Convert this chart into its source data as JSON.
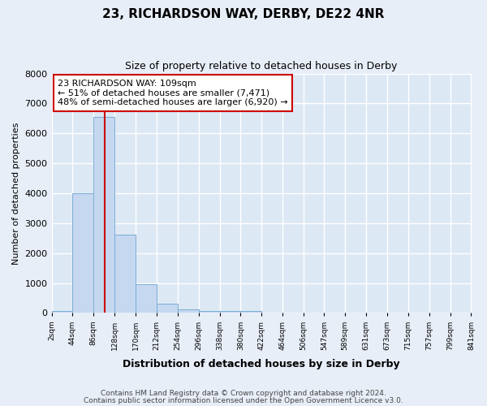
{
  "title": "23, RICHARDSON WAY, DERBY, DE22 4NR",
  "subtitle": "Size of property relative to detached houses in Derby",
  "xlabel": "Distribution of detached houses by size in Derby",
  "ylabel": "Number of detached properties",
  "bar_color": "#c5d8f0",
  "bar_edge_color": "#7aadd4",
  "bar_heights": [
    80,
    4000,
    6550,
    2620,
    960,
    310,
    120,
    80,
    60,
    55,
    0,
    0,
    0,
    0,
    0,
    0,
    0,
    0,
    0,
    0
  ],
  "bin_edges": [
    2,
    44,
    86,
    128,
    170,
    212,
    254,
    296,
    338,
    380,
    422,
    464,
    506,
    547,
    589,
    631,
    673,
    715,
    757,
    799,
    841
  ],
  "x_labels": [
    "2sqm",
    "44sqm",
    "86sqm",
    "128sqm",
    "170sqm",
    "212sqm",
    "254sqm",
    "296sqm",
    "338sqm",
    "380sqm",
    "422sqm",
    "464sqm",
    "506sqm",
    "547sqm",
    "589sqm",
    "631sqm",
    "673sqm",
    "715sqm",
    "757sqm",
    "799sqm",
    "841sqm"
  ],
  "ylim": [
    0,
    8000
  ],
  "yticks": [
    0,
    1000,
    2000,
    3000,
    4000,
    5000,
    6000,
    7000,
    8000
  ],
  "property_sqm": 109,
  "red_line_color": "#cc0000",
  "annotation_text": "23 RICHARDSON WAY: 109sqm\n← 51% of detached houses are smaller (7,471)\n48% of semi-detached houses are larger (6,920) →",
  "annotation_box_color": "#ffffff",
  "annotation_box_edge": "#cc0000",
  "footer1": "Contains HM Land Registry data © Crown copyright and database right 2024.",
  "footer2": "Contains public sector information licensed under the Open Government Licence v3.0.",
  "fig_background_color": "#e8eef8",
  "plot_background_color": "#dde8f5",
  "grid_color": "#ffffff"
}
